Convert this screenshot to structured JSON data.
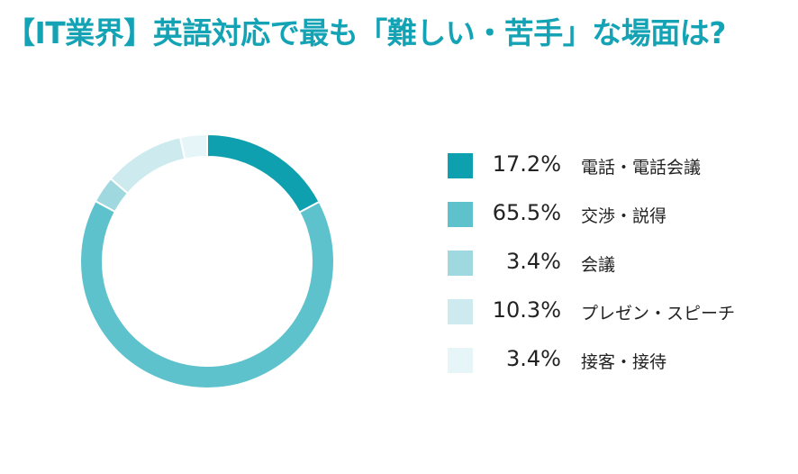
{
  "header": {
    "title": "【IT業界】英語対応で最も「難しい・苦手」な場面は?"
  },
  "chart_data": {
    "type": "pie",
    "donut": true,
    "title": "【IT業界】英語対応で最も「難しい・苦手」な場面は?",
    "legend_position": "right",
    "slices": [
      {
        "label": "電話・電話会議",
        "value": 17.2,
        "value_label": "17.2%",
        "color": "#0fa0b0"
      },
      {
        "label": "交渉・説得",
        "value": 65.5,
        "value_label": "65.5%",
        "color": "#5ec2cc"
      },
      {
        "label": "会議",
        "value": 3.4,
        "value_label": "3.4%",
        "color": "#9fd9df"
      },
      {
        "label": "プレゼン・スピーチ",
        "value": 10.3,
        "value_label": "10.3%",
        "color": "#cdebee"
      },
      {
        "label": "接客・接待",
        "value": 3.4,
        "value_label": "3.4%",
        "color": "#e6f5f7"
      }
    ]
  }
}
